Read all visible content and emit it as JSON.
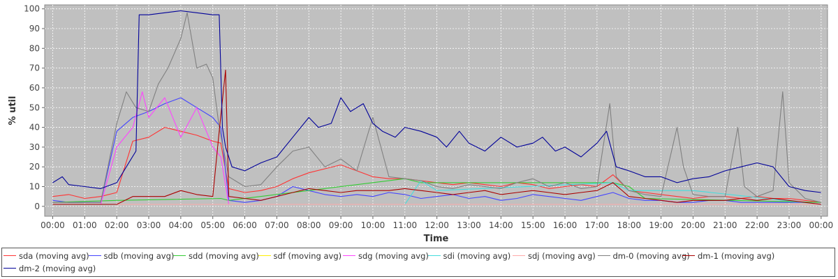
{
  "chart_data": {
    "type": "line",
    "title": "",
    "xlabel": "Time",
    "ylabel": "% util",
    "ylim": [
      -5,
      102
    ],
    "xlim_hours": [
      -0.25,
      24.2
    ],
    "yticks": [
      0,
      10,
      20,
      30,
      40,
      50,
      60,
      70,
      80,
      90,
      100
    ],
    "xticks": [
      "00:00",
      "01:00",
      "02:00",
      "03:00",
      "04:00",
      "05:00",
      "06:00",
      "07:00",
      "08:00",
      "09:00",
      "10:00",
      "11:00",
      "12:00",
      "13:00",
      "14:00",
      "15:00",
      "16:00",
      "17:00",
      "18:00",
      "19:00",
      "20:00",
      "21:00",
      "22:00",
      "23:00",
      "00:00"
    ],
    "grid": true,
    "legend_position": "bottom",
    "series": [
      {
        "name": "sda (moving avg)",
        "color": "#ff3333",
        "x": [
          0,
          0.5,
          1,
          1.5,
          2,
          2.5,
          3,
          3.5,
          4,
          4.5,
          5,
          5.25,
          5.5,
          6,
          6.5,
          7,
          7.5,
          8,
          8.5,
          9,
          9.5,
          10,
          10.5,
          11,
          11.5,
          12,
          12.5,
          13,
          13.5,
          14,
          14.5,
          15,
          15.5,
          16,
          16.5,
          17,
          17.5,
          18,
          18.5,
          19,
          19.5,
          20,
          20.5,
          21,
          21.5,
          22,
          22.5,
          23,
          23.5,
          24
        ],
        "y": [
          5,
          6,
          4,
          5,
          7,
          33,
          35,
          40,
          38,
          36,
          33,
          32,
          9,
          7,
          8,
          10,
          14,
          17,
          19,
          21,
          18,
          15,
          14,
          14,
          13,
          12,
          11,
          12,
          11,
          10,
          12,
          11,
          9,
          10,
          11,
          10,
          16,
          8,
          7,
          6,
          5,
          4,
          5,
          5,
          4,
          5,
          4,
          4,
          3,
          2
        ]
      },
      {
        "name": "sdb (moving avg)",
        "color": "#4444ff",
        "x": [
          0,
          0.5,
          1,
          1.5,
          2,
          2.5,
          3,
          3.5,
          4,
          4.5,
          5,
          5.25,
          5.5,
          6,
          6.5,
          7,
          7.5,
          8,
          8.5,
          9,
          9.5,
          10,
          10.5,
          11,
          11.5,
          12,
          12.5,
          13,
          13.5,
          14,
          14.5,
          15,
          15.5,
          16,
          16.5,
          17,
          17.5,
          18,
          18.5,
          19,
          19.5,
          20,
          20.5,
          21,
          21.5,
          22,
          22.5,
          23,
          23.5,
          24
        ],
        "y": [
          3,
          2,
          2,
          2,
          38,
          45,
          48,
          52,
          55,
          50,
          45,
          40,
          3,
          2,
          3,
          5,
          10,
          8,
          6,
          5,
          6,
          5,
          7,
          6,
          4,
          5,
          6,
          4,
          5,
          3,
          4,
          6,
          5,
          4,
          3,
          5,
          7,
          4,
          3,
          3,
          2,
          2,
          3,
          3,
          2,
          2,
          2,
          2,
          2,
          1
        ]
      },
      {
        "name": "sdd (moving avg)",
        "color": "#33cc33",
        "x": [
          0,
          2,
          5.25,
          5.5,
          11,
          11.5,
          17.5,
          18,
          18.5,
          24
        ],
        "y": [
          2,
          3,
          4,
          3,
          14,
          12,
          12,
          10,
          4,
          2
        ]
      },
      {
        "name": "sdf (moving avg)",
        "color": "#ffee00",
        "x": [
          0,
          24
        ],
        "y": [
          1,
          1
        ]
      },
      {
        "name": "sdg (moving avg)",
        "color": "#ff44ff",
        "x": [
          0,
          1,
          1.5,
          2,
          2.5,
          2.8,
          3,
          3.5,
          4,
          4.5,
          5,
          5.25,
          5.5,
          6,
          7,
          8,
          9,
          10,
          11,
          12,
          13,
          14,
          15,
          16,
          17,
          18,
          19,
          20,
          21,
          22,
          23,
          24
        ],
        "y": [
          1,
          1,
          1,
          30,
          40,
          58,
          45,
          55,
          35,
          50,
          30,
          25,
          1,
          1,
          1,
          1,
          1,
          1,
          1,
          1,
          1,
          1,
          1,
          1,
          1,
          1,
          1,
          1,
          1,
          1,
          1,
          1
        ]
      },
      {
        "name": "sdi (moving avg)",
        "color": "#44dddd",
        "x": [
          0,
          11,
          11.5,
          12,
          17.5,
          18,
          20,
          24
        ],
        "y": [
          1,
          1,
          13,
          8,
          12,
          8,
          8,
          1
        ]
      },
      {
        "name": "sdj (moving avg)",
        "color": "#ffaaaa",
        "x": [
          0,
          24
        ],
        "y": [
          1,
          1
        ]
      },
      {
        "name": "dm-0 (moving avg)",
        "color": "#808080",
        "x": [
          0,
          0.5,
          1,
          1.5,
          2,
          2.3,
          2.6,
          3,
          3.3,
          3.6,
          4,
          4.2,
          4.5,
          4.8,
          5,
          5.2,
          5.5,
          6,
          6.5,
          7,
          7.5,
          8,
          8.5,
          9,
          9.5,
          10,
          10.5,
          11,
          11.5,
          12,
          12.5,
          13,
          13.5,
          14,
          14.5,
          15,
          15.5,
          16,
          16.5,
          17,
          17.4,
          17.6,
          18,
          18.5,
          19,
          19.5,
          19.7,
          20,
          20.5,
          21,
          21.4,
          21.6,
          22,
          22.5,
          22.8,
          23,
          23.5,
          24
        ],
        "y": [
          2,
          2,
          2,
          2,
          42,
          58,
          50,
          48,
          62,
          70,
          85,
          98,
          70,
          72,
          65,
          40,
          15,
          10,
          11,
          20,
          28,
          30,
          20,
          24,
          18,
          45,
          15,
          14,
          13,
          10,
          9,
          11,
          10,
          9,
          12,
          14,
          10,
          12,
          9,
          10,
          52,
          15,
          8,
          6,
          5,
          40,
          20,
          6,
          5,
          5,
          40,
          10,
          5,
          8,
          58,
          12,
          4,
          2
        ]
      },
      {
        "name": "dm-1 (moving avg)",
        "color": "#aa0000",
        "x": [
          0,
          1,
          1.5,
          2,
          2.5,
          3,
          3.5,
          4,
          4.5,
          5,
          5.2,
          5.4,
          5.5,
          6,
          6.5,
          7,
          7.5,
          8,
          8.5,
          9,
          9.5,
          10,
          10.5,
          11,
          11.5,
          12,
          12.5,
          13,
          13.5,
          14,
          14.5,
          15,
          15.5,
          16,
          16.5,
          17,
          17.5,
          18,
          18.5,
          19,
          19.5,
          20,
          20.5,
          21,
          21.5,
          22,
          22.5,
          23,
          23.5,
          24
        ],
        "y": [
          1,
          1,
          1,
          1,
          5,
          5,
          5,
          8,
          6,
          5,
          38,
          69,
          5,
          4,
          3,
          5,
          7,
          9,
          8,
          7,
          8,
          8,
          8,
          9,
          8,
          7,
          6,
          7,
          8,
          6,
          7,
          8,
          7,
          6,
          7,
          8,
          12,
          5,
          4,
          3,
          2,
          3,
          3,
          3,
          4,
          3,
          4,
          3,
          2,
          1
        ]
      },
      {
        "name": "dm-2 (moving avg)",
        "color": "#000099",
        "x": [
          0,
          0.3,
          0.5,
          1,
          1.5,
          2,
          2.3,
          2.6,
          2.7,
          3,
          3.5,
          4,
          4.5,
          5,
          5.2,
          5.3,
          5.4,
          5.6,
          6,
          6.5,
          7,
          7.5,
          8,
          8.3,
          8.7,
          9,
          9.3,
          9.7,
          10,
          10.3,
          10.7,
          11,
          11.5,
          12,
          12.3,
          12.7,
          13,
          13.5,
          14,
          14.5,
          15,
          15.3,
          15.7,
          16,
          16.5,
          17,
          17.3,
          17.6,
          18,
          18.5,
          19,
          19.5,
          20,
          20.5,
          21,
          21.5,
          22,
          22.5,
          23,
          23.5,
          24
        ],
        "y": [
          12,
          15,
          11,
          10,
          9,
          12,
          20,
          28,
          97,
          97,
          98,
          99,
          98,
          97,
          97,
          40,
          30,
          20,
          18,
          22,
          25,
          35,
          45,
          40,
          42,
          55,
          48,
          52,
          42,
          38,
          35,
          40,
          38,
          35,
          30,
          38,
          32,
          28,
          35,
          30,
          32,
          35,
          28,
          30,
          25,
          32,
          38,
          20,
          18,
          15,
          15,
          12,
          14,
          15,
          18,
          20,
          22,
          20,
          10,
          8,
          7
        ]
      }
    ]
  }
}
